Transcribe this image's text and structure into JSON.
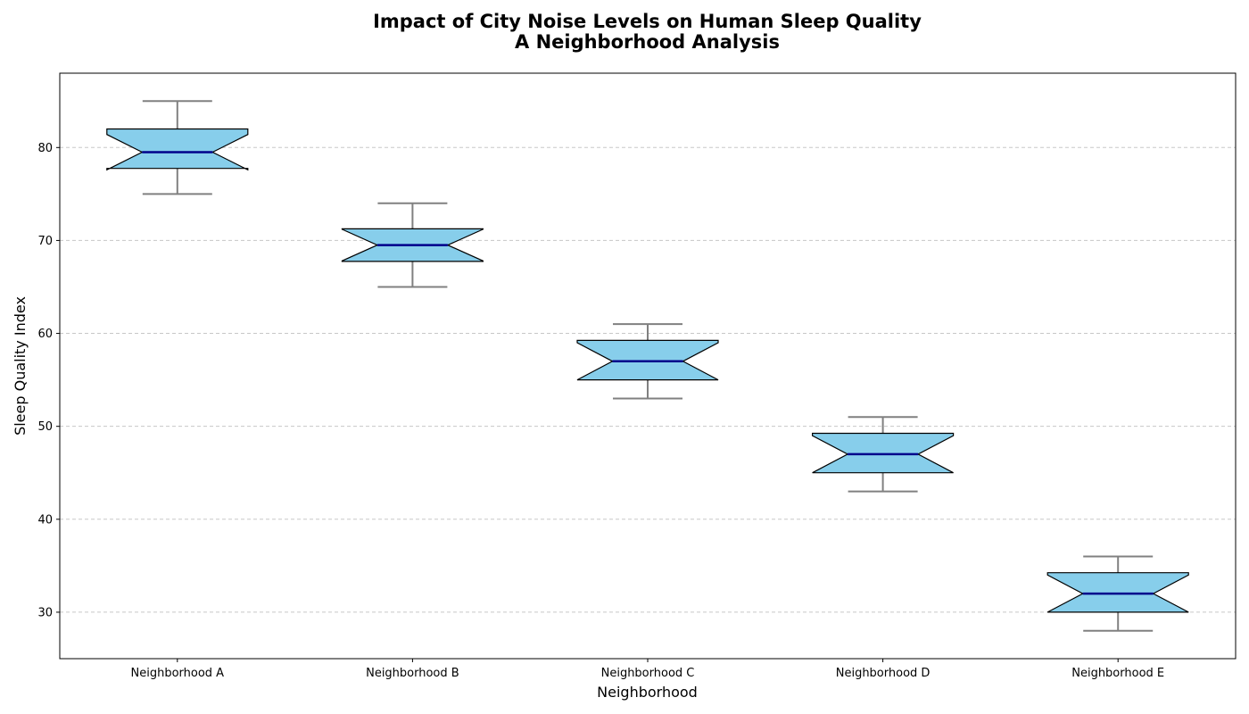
{
  "chart_data": {
    "type": "box",
    "title_lines": [
      "Impact of City Noise Levels on Human Sleep Quality",
      "A Neighborhood Analysis"
    ],
    "xlabel": "Neighborhood",
    "ylabel": "Sleep Quality Index",
    "ylim": [
      25,
      88
    ],
    "yticks": [
      30,
      40,
      50,
      60,
      70,
      80
    ],
    "grid": "y-dashed",
    "categories": [
      "Neighborhood A",
      "Neighborhood B",
      "Neighborhood C",
      "Neighborhood D",
      "Neighborhood E"
    ],
    "boxes": [
      {
        "whislo": 75,
        "q1": 77.75,
        "med": 79.5,
        "q3": 82,
        "whishi": 85,
        "notch_lo": 77.6,
        "notch_hi": 81.4
      },
      {
        "whislo": 65,
        "q1": 67.75,
        "med": 69.5,
        "q3": 71.25,
        "whishi": 74,
        "notch_lo": 67.8,
        "notch_hi": 71.2
      },
      {
        "whislo": 53,
        "q1": 55,
        "med": 57,
        "q3": 59.25,
        "whishi": 61,
        "notch_lo": 55,
        "notch_hi": 59
      },
      {
        "whislo": 43,
        "q1": 45,
        "med": 47,
        "q3": 49.25,
        "whishi": 51,
        "notch_lo": 45,
        "notch_hi": 49
      },
      {
        "whislo": 28,
        "q1": 30,
        "med": 32,
        "q3": 34.25,
        "whishi": 36,
        "notch_lo": 30,
        "notch_hi": 34
      }
    ],
    "colors": {
      "box_fill": "#87ceeb",
      "box_edge": "#000000",
      "median": "#00008b",
      "whisker": "#808080",
      "grid": "#c8c8c8"
    }
  }
}
